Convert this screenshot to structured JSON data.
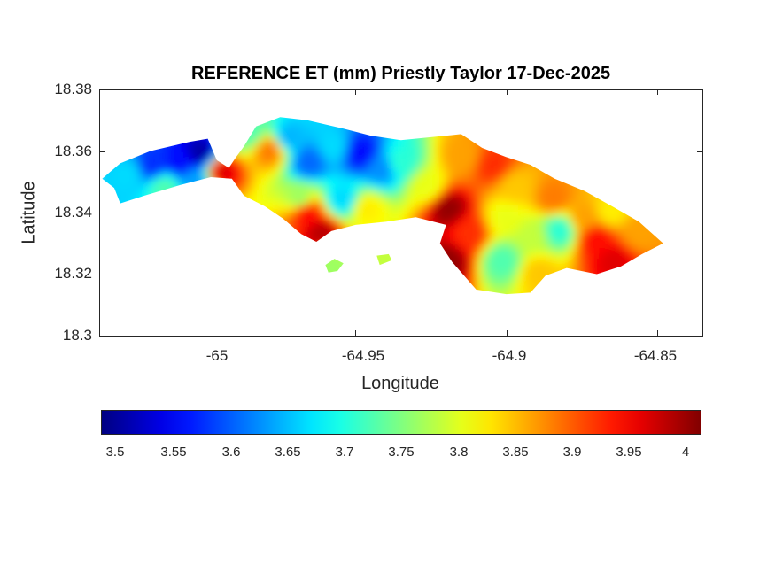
{
  "figure": {
    "title": "REFERENCE ET (mm) Priestly Taylor 17-Dec-2025",
    "xlabel": "Longitude",
    "ylabel": "Latitude"
  },
  "chart_data": {
    "type": "heatmap",
    "title": "REFERENCE ET (mm) Priestly Taylor 17-Dec-2025",
    "xlabel": "Longitude",
    "ylabel": "Latitude",
    "xlim": [
      -65.035,
      -64.835
    ],
    "ylim": [
      18.3,
      18.38
    ],
    "x_ticks": [
      -65,
      -64.95,
      -64.9,
      -64.85
    ],
    "x_tick_labels": [
      "-65",
      "-64.95",
      "-64.9",
      "-64.85"
    ],
    "y_ticks": [
      18.3,
      18.32,
      18.34,
      18.36,
      18.38
    ],
    "y_tick_labels": [
      "18.3",
      "18.32",
      "18.34",
      "18.36",
      "18.38"
    ],
    "colormap": "jet",
    "color_range": [
      3.48,
      4.01
    ],
    "colorbar": {
      "orientation": "horizontal",
      "location": "below",
      "ticks": [
        3.5,
        3.55,
        3.6,
        3.65,
        3.7,
        3.75,
        3.8,
        3.85,
        3.9,
        3.95,
        4
      ],
      "tick_labels": [
        "3.5",
        "3.55",
        "3.6",
        "3.65",
        "3.7",
        "3.75",
        "3.8",
        "3.85",
        "3.9",
        "3.95",
        "4"
      ]
    },
    "regions": [
      {
        "name": "",
        "outline": [
          [
            -65.034,
            18.351
          ],
          [
            -65.028,
            18.356
          ],
          [
            -65.018,
            18.36
          ],
          [
            -65.005,
            18.363
          ],
          [
            -64.999,
            18.364
          ],
          [
            -64.996,
            18.357
          ],
          [
            -64.992,
            18.3545
          ],
          [
            -64.99,
            18.3575
          ],
          [
            -64.987,
            18.3615
          ],
          [
            -64.983,
            18.368
          ],
          [
            -64.975,
            18.371
          ],
          [
            -64.966,
            18.37
          ],
          [
            -64.955,
            18.3675
          ],
          [
            -64.945,
            18.365
          ],
          [
            -64.935,
            18.3635
          ],
          [
            -64.925,
            18.3645
          ],
          [
            -64.915,
            18.3655
          ],
          [
            -64.908,
            18.361
          ],
          [
            -64.9,
            18.358
          ],
          [
            -64.892,
            18.3555
          ],
          [
            -64.884,
            18.351
          ],
          [
            -64.874,
            18.347
          ],
          [
            -64.864,
            18.3415
          ],
          [
            -64.856,
            18.337
          ],
          [
            -64.848,
            18.33
          ],
          [
            -64.855,
            18.3265
          ],
          [
            -64.862,
            18.3225
          ],
          [
            -64.87,
            18.32
          ],
          [
            -64.88,
            18.322
          ],
          [
            -64.887,
            18.3195
          ],
          [
            -64.892,
            18.314
          ],
          [
            -64.9,
            18.3135
          ],
          [
            -64.91,
            18.315
          ],
          [
            -64.918,
            18.324
          ],
          [
            -64.922,
            18.33
          ],
          [
            -64.92,
            18.336
          ],
          [
            -64.93,
            18.3385
          ],
          [
            -64.94,
            18.337
          ],
          [
            -64.95,
            18.336
          ],
          [
            -64.958,
            18.334
          ],
          [
            -64.963,
            18.3305
          ],
          [
            -64.968,
            18.333
          ],
          [
            -64.974,
            18.338
          ],
          [
            -64.98,
            18.342
          ],
          [
            -64.987,
            18.3455
          ],
          [
            -64.991,
            18.351
          ],
          [
            -64.998,
            18.3515
          ],
          [
            -65.008,
            18.349
          ],
          [
            -65.02,
            18.3455
          ],
          [
            -65.028,
            18.343
          ],
          [
            -65.03,
            18.348
          ]
        ]
      },
      {
        "name": "",
        "outline": [
          [
            -64.96,
            18.323
          ],
          [
            -64.957,
            18.325
          ],
          [
            -64.954,
            18.3235
          ],
          [
            -64.956,
            18.321
          ],
          [
            -64.959,
            18.3205
          ]
        ]
      },
      {
        "name": "",
        "outline": [
          [
            -64.943,
            18.326
          ],
          [
            -64.939,
            18.3265
          ],
          [
            -64.938,
            18.3245
          ],
          [
            -64.942,
            18.323
          ]
        ]
      }
    ],
    "samples": [
      {
        "lon": -65.025,
        "lat": 18.352,
        "value": 3.66
      },
      {
        "lon": -65.017,
        "lat": 18.355,
        "value": 3.57
      },
      {
        "lon": -65.008,
        "lat": 18.356,
        "value": 3.55
      },
      {
        "lon": -65.001,
        "lat": 18.359,
        "value": 3.5
      },
      {
        "lon": -65.003,
        "lat": 18.35,
        "value": 3.63
      },
      {
        "lon": -65.013,
        "lat": 18.348,
        "value": 3.72
      },
      {
        "lon": -64.994,
        "lat": 18.353,
        "value": 3.96
      },
      {
        "lon": -64.985,
        "lat": 18.366,
        "value": 3.72
      },
      {
        "lon": -64.978,
        "lat": 18.36,
        "value": 3.88
      },
      {
        "lon": -64.972,
        "lat": 18.364,
        "value": 3.64
      },
      {
        "lon": -64.965,
        "lat": 18.356,
        "value": 3.6
      },
      {
        "lon": -64.957,
        "lat": 18.361,
        "value": 3.66
      },
      {
        "lon": -64.948,
        "lat": 18.359,
        "value": 3.55
      },
      {
        "lon": -64.941,
        "lat": 18.354,
        "value": 3.62
      },
      {
        "lon": -64.935,
        "lat": 18.356,
        "value": 3.7
      },
      {
        "lon": -64.968,
        "lat": 18.344,
        "value": 3.76
      },
      {
        "lon": -64.966,
        "lat": 18.34,
        "value": 3.94
      },
      {
        "lon": -64.954,
        "lat": 18.344,
        "value": 3.66
      },
      {
        "lon": -64.946,
        "lat": 18.341,
        "value": 3.82
      },
      {
        "lon": -64.961,
        "lat": 18.333,
        "value": 3.98
      },
      {
        "lon": -64.926,
        "lat": 18.348,
        "value": 3.8
      },
      {
        "lon": -64.919,
        "lat": 18.341,
        "value": 4.0
      },
      {
        "lon": -64.919,
        "lat": 18.324,
        "value": 4.0
      },
      {
        "lon": -64.912,
        "lat": 18.333,
        "value": 3.92
      },
      {
        "lon": -64.914,
        "lat": 18.358,
        "value": 3.86
      },
      {
        "lon": -64.904,
        "lat": 18.355,
        "value": 3.92
      },
      {
        "lon": -64.897,
        "lat": 18.348,
        "value": 3.84
      },
      {
        "lon": -64.9,
        "lat": 18.338,
        "value": 3.8
      },
      {
        "lon": -64.901,
        "lat": 18.324,
        "value": 3.72
      },
      {
        "lon": -64.891,
        "lat": 18.332,
        "value": 3.78
      },
      {
        "lon": -64.889,
        "lat": 18.32,
        "value": 3.84
      },
      {
        "lon": -64.884,
        "lat": 18.344,
        "value": 3.88
      },
      {
        "lon": -64.882,
        "lat": 18.334,
        "value": 3.7
      },
      {
        "lon": -64.874,
        "lat": 18.338,
        "value": 3.86
      },
      {
        "lon": -64.87,
        "lat": 18.331,
        "value": 3.94
      },
      {
        "lon": -64.865,
        "lat": 18.34,
        "value": 3.82
      },
      {
        "lon": -64.864,
        "lat": 18.324,
        "value": 3.96
      },
      {
        "lon": -64.856,
        "lat": 18.333,
        "value": 3.86
      },
      {
        "lon": -64.958,
        "lat": 18.323,
        "value": 3.76
      },
      {
        "lon": -64.94,
        "lat": 18.325,
        "value": 3.78
      }
    ]
  }
}
